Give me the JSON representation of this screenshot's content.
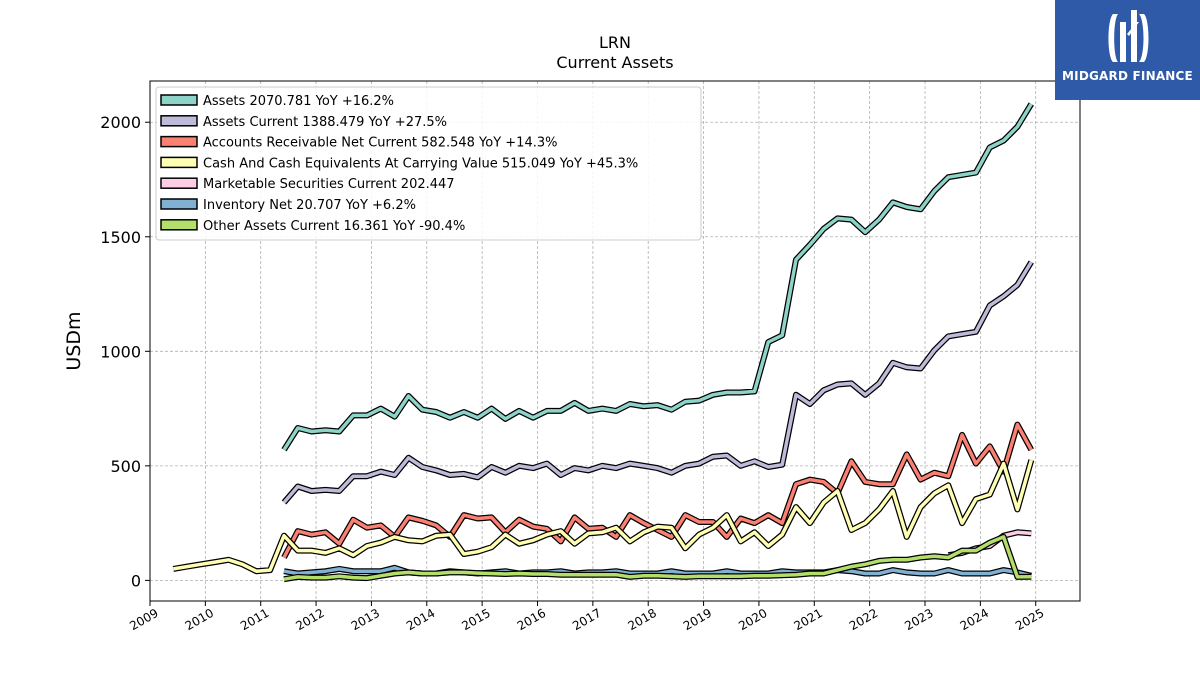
{
  "chart_data": {
    "type": "line",
    "title": "LRN",
    "subtitle": "Current  Assets",
    "ylabel": "USDm",
    "xlabel": "",
    "xlim": [
      2009.0,
      2025.8
    ],
    "ylim": [
      -90,
      2180
    ],
    "yticks": [
      0,
      500,
      1000,
      1500,
      2000
    ],
    "xticks": [
      "2009",
      "2010",
      "2011",
      "2012",
      "2013",
      "2014",
      "2015",
      "2016",
      "2017",
      "2018",
      "2019",
      "2020",
      "2021",
      "2022",
      "2023",
      "2024",
      "2025"
    ],
    "grid": true,
    "legend_position": "top-left",
    "series": [
      {
        "name": "Assets  2070.781 YoY +16.2%",
        "color": "#8dd3c7",
        "x": [
          2011.42,
          2011.67,
          2011.92,
          2012.17,
          2012.42,
          2012.67,
          2012.92,
          2013.17,
          2013.42,
          2013.67,
          2013.92,
          2014.17,
          2014.42,
          2014.67,
          2014.92,
          2015.17,
          2015.42,
          2015.67,
          2015.92,
          2016.17,
          2016.42,
          2016.67,
          2016.92,
          2017.17,
          2017.42,
          2017.67,
          2017.92,
          2018.17,
          2018.42,
          2018.67,
          2018.92,
          2019.17,
          2019.42,
          2019.67,
          2019.92,
          2020.17,
          2020.42,
          2020.67,
          2020.92,
          2021.17,
          2021.42,
          2021.67,
          2021.92,
          2022.17,
          2022.42,
          2022.67,
          2022.92,
          2023.17,
          2023.42,
          2023.67,
          2023.92,
          2024.17,
          2024.42,
          2024.67,
          2024.92
        ],
        "values": [
          570,
          665,
          650,
          655,
          650,
          720,
          720,
          750,
          715,
          805,
          745,
          735,
          710,
          735,
          710,
          750,
          705,
          740,
          710,
          740,
          740,
          775,
          740,
          750,
          740,
          770,
          760,
          765,
          745,
          780,
          785,
          810,
          820,
          820,
          825,
          1040,
          1070,
          1400,
          1465,
          1535,
          1580,
          1575,
          1520,
          1575,
          1650,
          1630,
          1620,
          1700,
          1760,
          1770,
          1780,
          1890,
          1920,
          1980,
          2080
        ]
      },
      {
        "name": "Assets Current  1388.479 YoY +27.5%",
        "color": "#bebada",
        "x": [
          2011.42,
          2011.67,
          2011.92,
          2012.17,
          2012.42,
          2012.67,
          2012.92,
          2013.17,
          2013.42,
          2013.67,
          2013.92,
          2014.17,
          2014.42,
          2014.67,
          2014.92,
          2015.17,
          2015.42,
          2015.67,
          2015.92,
          2016.17,
          2016.42,
          2016.67,
          2016.92,
          2017.17,
          2017.42,
          2017.67,
          2017.92,
          2018.17,
          2018.42,
          2018.67,
          2018.92,
          2019.17,
          2019.42,
          2019.67,
          2019.92,
          2020.17,
          2020.42,
          2020.67,
          2020.92,
          2021.17,
          2021.42,
          2021.67,
          2021.92,
          2022.17,
          2022.42,
          2022.67,
          2022.92,
          2023.17,
          2023.42,
          2023.67,
          2023.92,
          2024.17,
          2024.42,
          2024.67,
          2024.92
        ],
        "values": [
          340,
          410,
          390,
          395,
          390,
          455,
          455,
          475,
          460,
          535,
          495,
          480,
          460,
          465,
          450,
          495,
          470,
          500,
          490,
          510,
          460,
          490,
          480,
          500,
          490,
          510,
          500,
          490,
          470,
          500,
          510,
          540,
          545,
          500,
          520,
          495,
          505,
          810,
          770,
          830,
          855,
          860,
          810,
          860,
          950,
          930,
          925,
          1005,
          1065,
          1075,
          1085,
          1200,
          1240,
          1290,
          1390
        ]
      },
      {
        "name": "Accounts Receivable Net Current  582.548 YoY +14.3%",
        "color": "#fb8072",
        "x": [
          2011.42,
          2011.67,
          2011.92,
          2012.17,
          2012.42,
          2012.67,
          2012.92,
          2013.17,
          2013.42,
          2013.67,
          2013.92,
          2014.17,
          2014.42,
          2014.67,
          2014.92,
          2015.17,
          2015.42,
          2015.67,
          2015.92,
          2016.17,
          2016.42,
          2016.67,
          2016.92,
          2017.17,
          2017.42,
          2017.67,
          2017.92,
          2018.17,
          2018.42,
          2018.67,
          2018.92,
          2019.17,
          2019.42,
          2019.67,
          2019.92,
          2020.17,
          2020.42,
          2020.67,
          2020.92,
          2021.17,
          2021.42,
          2021.67,
          2021.92,
          2022.17,
          2022.42,
          2022.67,
          2022.92,
          2023.17,
          2023.42,
          2023.67,
          2023.92,
          2024.17,
          2024.42,
          2024.67,
          2024.92
        ],
        "values": [
          100,
          215,
          200,
          210,
          160,
          265,
          230,
          240,
          190,
          275,
          260,
          240,
          190,
          285,
          270,
          275,
          210,
          265,
          235,
          225,
          170,
          275,
          225,
          230,
          190,
          285,
          250,
          220,
          190,
          285,
          255,
          255,
          190,
          270,
          250,
          285,
          250,
          420,
          440,
          430,
          380,
          520,
          430,
          420,
          420,
          550,
          440,
          470,
          455,
          635,
          510,
          585,
          475,
          680,
          570
        ]
      },
      {
        "name": "Cash And Cash Equivalents At Carrying Value  515.049 YoY +45.3%",
        "color": "#ffffb3",
        "x": [
          2009.42,
          2009.67,
          2009.92,
          2010.17,
          2010.42,
          2010.67,
          2010.92,
          2011.17,
          2011.42,
          2011.67,
          2011.92,
          2012.17,
          2012.42,
          2012.67,
          2012.92,
          2013.17,
          2013.42,
          2013.67,
          2013.92,
          2014.17,
          2014.42,
          2014.67,
          2014.92,
          2015.17,
          2015.42,
          2015.67,
          2015.92,
          2016.17,
          2016.42,
          2016.67,
          2016.92,
          2017.17,
          2017.42,
          2017.67,
          2017.92,
          2018.17,
          2018.42,
          2018.67,
          2018.92,
          2019.17,
          2019.42,
          2019.67,
          2019.92,
          2020.17,
          2020.42,
          2020.67,
          2020.92,
          2021.17,
          2021.42,
          2021.67,
          2021.92,
          2022.17,
          2022.42,
          2022.67,
          2022.92,
          2023.17,
          2023.42,
          2023.67,
          2023.92,
          2024.17,
          2024.42,
          2024.67,
          2024.92
        ],
        "values": [
          50,
          60,
          70,
          80,
          90,
          70,
          40,
          45,
          195,
          130,
          130,
          120,
          140,
          110,
          150,
          165,
          190,
          175,
          170,
          195,
          200,
          115,
          125,
          145,
          200,
          160,
          175,
          200,
          215,
          160,
          205,
          210,
          230,
          170,
          210,
          235,
          230,
          140,
          200,
          230,
          285,
          170,
          210,
          150,
          200,
          320,
          250,
          340,
          390,
          220,
          250,
          310,
          390,
          190,
          320,
          380,
          415,
          250,
          355,
          375,
          510,
          310,
          525
        ]
      },
      {
        "name": "Marketable Securities Current  202.447",
        "color": "#fccde5",
        "x": [
          2023.42,
          2023.67,
          2023.92,
          2024.17,
          2024.42,
          2024.67,
          2024.92
        ],
        "values": [
          110,
          120,
          140,
          150,
          195,
          210,
          205
        ]
      },
      {
        "name": "Inventory Net  20.707 YoY +6.2%",
        "color": "#80b1d3",
        "x": [
          2011.42,
          2011.67,
          2011.92,
          2012.17,
          2012.42,
          2012.67,
          2012.92,
          2013.17,
          2013.42,
          2013.67,
          2013.92,
          2014.17,
          2014.42,
          2014.67,
          2014.92,
          2015.17,
          2015.42,
          2015.67,
          2015.92,
          2016.17,
          2016.42,
          2016.67,
          2016.92,
          2017.17,
          2017.42,
          2017.67,
          2017.92,
          2018.17,
          2018.42,
          2018.67,
          2018.92,
          2019.17,
          2019.42,
          2019.67,
          2019.92,
          2020.17,
          2020.42,
          2020.67,
          2020.92,
          2021.17,
          2021.42,
          2021.67,
          2021.92,
          2022.17,
          2022.42,
          2022.67,
          2022.92,
          2023.17,
          2023.42,
          2023.67,
          2023.92,
          2024.17,
          2024.42,
          2024.67,
          2024.92
        ],
        "values": [
          40,
          30,
          35,
          40,
          50,
          40,
          40,
          40,
          55,
          35,
          30,
          30,
          40,
          35,
          30,
          35,
          40,
          30,
          35,
          35,
          40,
          30,
          35,
          35,
          40,
          30,
          30,
          30,
          40,
          30,
          30,
          30,
          40,
          30,
          30,
          30,
          40,
          35,
          35,
          35,
          45,
          40,
          30,
          30,
          45,
          35,
          30,
          30,
          45,
          30,
          30,
          30,
          45,
          35,
          20
        ]
      },
      {
        "name": "Other Assets Current  16.361 YoY -90.4%",
        "color": "#b3de69",
        "x": [
          2011.42,
          2011.67,
          2011.92,
          2012.17,
          2012.42,
          2012.67,
          2012.92,
          2013.17,
          2013.42,
          2013.67,
          2013.92,
          2014.17,
          2014.42,
          2014.67,
          2014.92,
          2015.17,
          2015.42,
          2015.67,
          2015.92,
          2016.17,
          2016.42,
          2016.67,
          2016.92,
          2017.17,
          2017.42,
          2017.67,
          2017.92,
          2018.17,
          2018.42,
          2018.67,
          2018.92,
          2019.17,
          2019.42,
          2019.67,
          2019.92,
          2020.17,
          2020.42,
          2020.67,
          2020.92,
          2021.17,
          2021.42,
          2021.67,
          2021.92,
          2022.17,
          2022.42,
          2022.67,
          2022.92,
          2023.17,
          2023.42,
          2023.67,
          2023.92,
          2024.17,
          2024.42,
          2024.67,
          2024.92
        ],
        "values": [
          5,
          15,
          12,
          12,
          18,
          12,
          10,
          20,
          30,
          35,
          30,
          30,
          35,
          35,
          32,
          30,
          28,
          30,
          28,
          28,
          25,
          25,
          25,
          25,
          25,
          15,
          20,
          20,
          18,
          15,
          18,
          18,
          18,
          18,
          20,
          20,
          22,
          25,
          30,
          30,
          45,
          60,
          70,
          85,
          90,
          90,
          100,
          105,
          100,
          130,
          130,
          165,
          190,
          15,
          16
        ]
      }
    ]
  },
  "brand": {
    "name": "MIDGARD FINANCE",
    "bg_color": "#2e5aa8"
  }
}
